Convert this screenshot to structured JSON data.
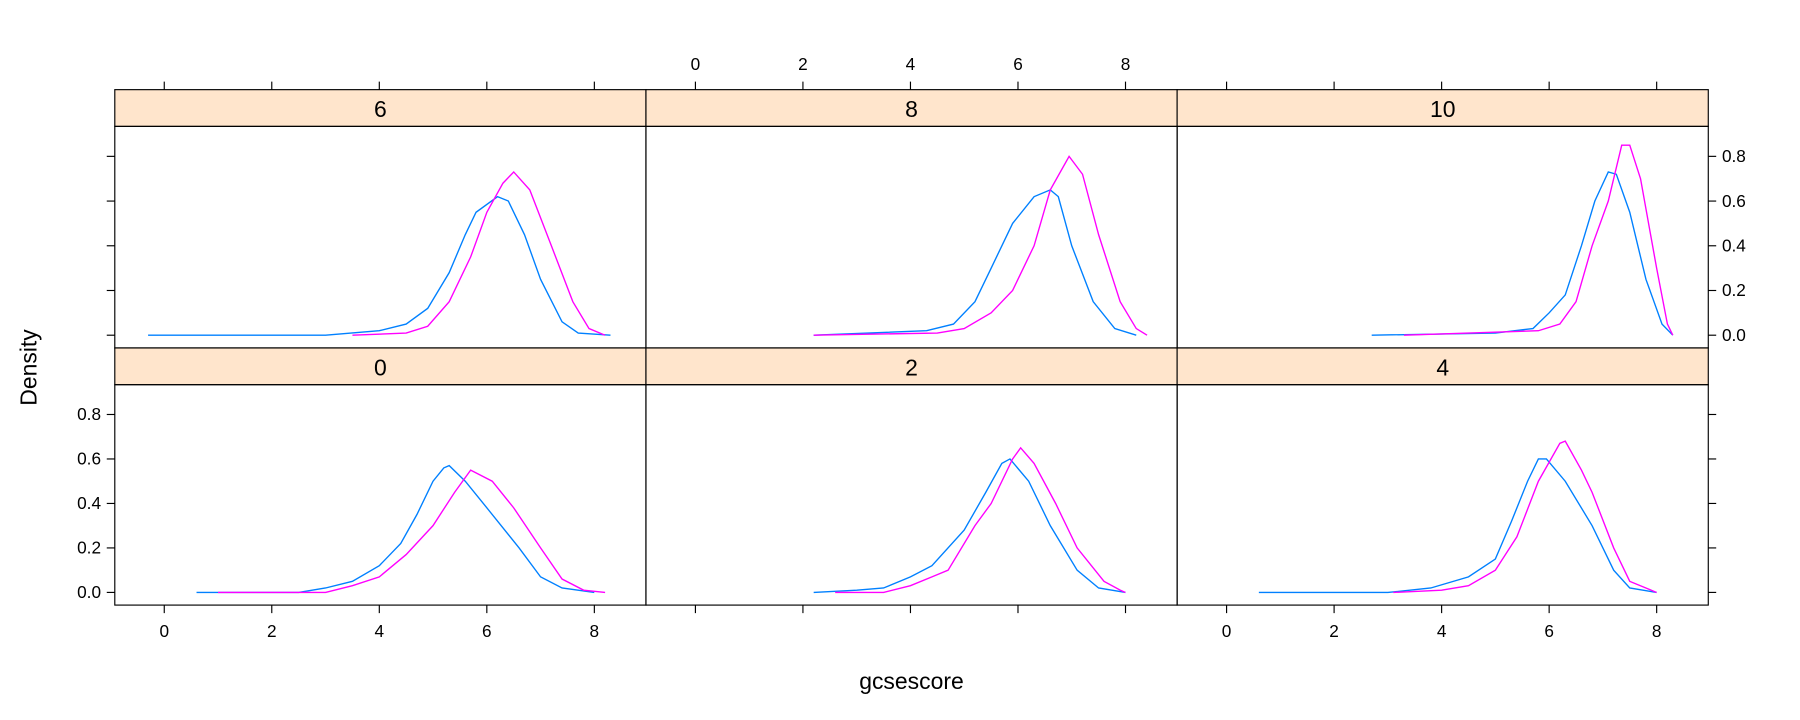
{
  "chart_data": {
    "type": "line",
    "subtype": "density lattice",
    "xlabel": "gcsescore",
    "ylabel": "Density",
    "xlim": [
      -0.92,
      8.96
    ],
    "ylim": [
      -0.057,
      0.934
    ],
    "xticks": [
      0,
      2,
      4,
      6,
      8
    ],
    "yticks": [
      0.0,
      0.2,
      0.4,
      0.6,
      0.8
    ],
    "ytick_labels": [
      "0.0",
      "0.2",
      "0.4",
      "0.6",
      "0.8"
    ],
    "grid": false,
    "strip_color": "#ffe5cc",
    "series_colors": [
      "#0080ff",
      "#ff00ff"
    ],
    "panels": [
      {
        "label": "0",
        "series": [
          {
            "x": [
              0.6,
              2.5,
              3,
              3.5,
              4,
              4.4,
              4.7,
              5.0,
              5.2,
              5.3,
              5.6,
              6.0,
              6.6,
              7.0,
              7.4,
              8.0
            ],
            "y": [
              0,
              0,
              0.02,
              0.05,
              0.12,
              0.22,
              0.35,
              0.5,
              0.56,
              0.57,
              0.5,
              0.38,
              0.2,
              0.07,
              0.02,
              0
            ]
          },
          {
            "x": [
              1.0,
              3.0,
              3.5,
              4.0,
              4.5,
              5.0,
              5.4,
              5.7,
              6.1,
              6.5,
              7.0,
              7.4,
              7.8,
              8.2
            ],
            "y": [
              0,
              0,
              0.03,
              0.07,
              0.17,
              0.3,
              0.45,
              0.55,
              0.5,
              0.38,
              0.2,
              0.06,
              0.01,
              0
            ]
          }
        ]
      },
      {
        "label": "2",
        "series": [
          {
            "x": [
              2.2,
              3,
              3.5,
              4,
              4.4,
              5,
              5.4,
              5.7,
              5.85,
              6.2,
              6.6,
              7.1,
              7.5,
              8
            ],
            "y": [
              0,
              0.01,
              0.02,
              0.07,
              0.12,
              0.28,
              0.45,
              0.58,
              0.6,
              0.5,
              0.3,
              0.1,
              0.02,
              0
            ]
          },
          {
            "x": [
              2.6,
              3.5,
              4,
              4.4,
              4.7,
              5.2,
              5.5,
              5.9,
              6.05,
              6.3,
              6.7,
              7.1,
              7.6,
              7.9,
              8
            ],
            "y": [
              0,
              0,
              0.03,
              0.07,
              0.1,
              0.3,
              0.4,
              0.6,
              0.65,
              0.58,
              0.4,
              0.2,
              0.05,
              0.01,
              0
            ]
          }
        ]
      },
      {
        "label": "4",
        "series": [
          {
            "x": [
              0.6,
              3,
              3.8,
              4.5,
              5.0,
              5.3,
              5.6,
              5.8,
              5.95,
              6.3,
              6.8,
              7.2,
              7.5,
              8
            ],
            "y": [
              0,
              0,
              0.02,
              0.07,
              0.15,
              0.32,
              0.5,
              0.6,
              0.6,
              0.5,
              0.3,
              0.1,
              0.02,
              0
            ]
          },
          {
            "x": [
              3.1,
              4,
              4.5,
              5,
              5.4,
              5.8,
              6.2,
              6.3,
              6.6,
              6.8,
              7.2,
              7.5,
              8
            ],
            "y": [
              0,
              0.01,
              0.03,
              0.1,
              0.25,
              0.5,
              0.67,
              0.68,
              0.55,
              0.45,
              0.2,
              0.05,
              0
            ]
          }
        ]
      },
      {
        "label": "6",
        "series": [
          {
            "x": [
              -0.3,
              3,
              4,
              4.5,
              4.9,
              5.3,
              5.6,
              5.8,
              6.2,
              6.4,
              6.7,
              7.0,
              7.4,
              7.7,
              8.3
            ],
            "y": [
              0,
              0,
              0.02,
              0.05,
              0.12,
              0.28,
              0.45,
              0.55,
              0.62,
              0.6,
              0.45,
              0.25,
              0.06,
              0.01,
              0
            ]
          },
          {
            "x": [
              3.5,
              4.5,
              4.9,
              5.3,
              5.7,
              6.0,
              6.3,
              6.5,
              6.8,
              7.2,
              7.6,
              7.9,
              8.2
            ],
            "y": [
              0,
              0.01,
              0.04,
              0.15,
              0.35,
              0.55,
              0.68,
              0.73,
              0.65,
              0.4,
              0.15,
              0.03,
              0
            ]
          }
        ]
      },
      {
        "label": "8",
        "series": [
          {
            "x": [
              2.2,
              4.3,
              4.8,
              5.2,
              5.5,
              5.9,
              6.3,
              6.6,
              6.75,
              7.0,
              7.4,
              7.8,
              8.2
            ],
            "y": [
              0,
              0.02,
              0.05,
              0.15,
              0.3,
              0.5,
              0.62,
              0.65,
              0.62,
              0.4,
              0.15,
              0.03,
              0
            ]
          },
          {
            "x": [
              2.2,
              4.5,
              5,
              5.5,
              5.9,
              6.3,
              6.6,
              6.95,
              7.2,
              7.5,
              7.9,
              8.2,
              8.4
            ],
            "y": [
              0,
              0.01,
              0.03,
              0.1,
              0.2,
              0.4,
              0.65,
              0.8,
              0.72,
              0.45,
              0.15,
              0.03,
              0
            ]
          }
        ]
      },
      {
        "label": "10",
        "series": [
          {
            "x": [
              2.7,
              5,
              5.7,
              6.0,
              6.3,
              6.6,
              6.85,
              7.1,
              7.25,
              7.5,
              7.8,
              8.1,
              8.3
            ],
            "y": [
              0,
              0.01,
              0.03,
              0.1,
              0.18,
              0.4,
              0.6,
              0.73,
              0.72,
              0.55,
              0.25,
              0.05,
              0
            ]
          },
          {
            "x": [
              3.3,
              5.8,
              6.2,
              6.5,
              6.8,
              7.1,
              7.35,
              7.5,
              7.7,
              8.0,
              8.2,
              8.3
            ],
            "y": [
              0,
              0.02,
              0.05,
              0.15,
              0.4,
              0.6,
              0.85,
              0.85,
              0.7,
              0.3,
              0.05,
              0
            ]
          }
        ]
      }
    ]
  }
}
